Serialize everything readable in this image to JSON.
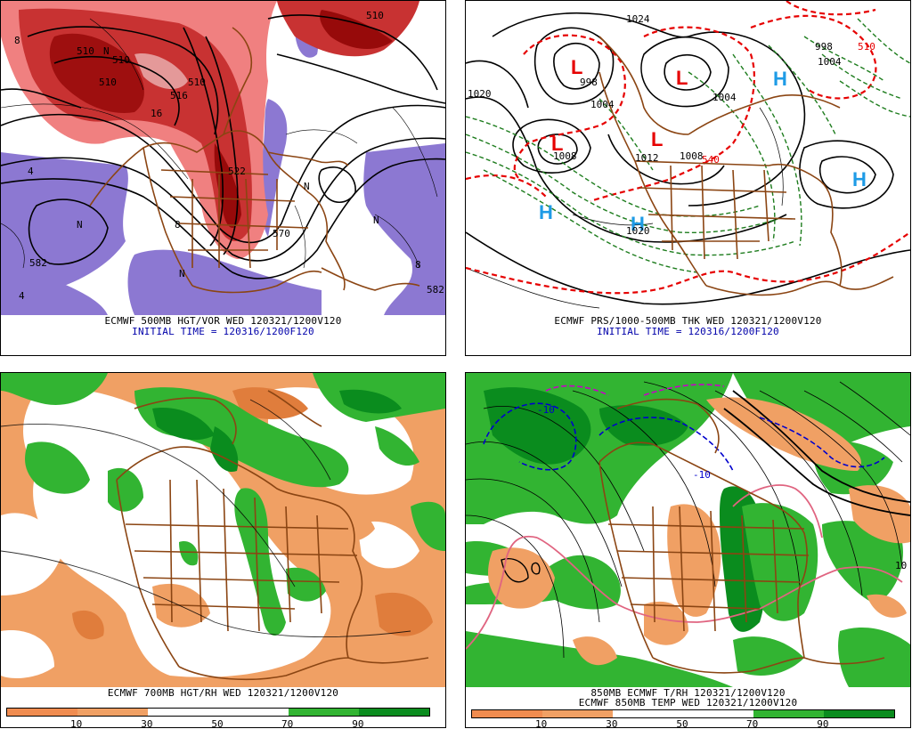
{
  "panels": [
    {
      "id": "p1",
      "caption_lines": [
        "ECMWF 500MB HGT/VOR WED 120321/1200V120",
        "INITIAL TIME = 120316/1200F120"
      ],
      "labels": [
        "510",
        "510",
        "510",
        "516",
        "510",
        "522",
        "510",
        "582",
        "570",
        "582",
        "N",
        "N",
        "N",
        "N",
        "N",
        "4",
        "4",
        "8",
        "8",
        "8",
        "16"
      ]
    },
    {
      "id": "p2",
      "caption_lines": [
        "ECMWF PRS/1000-500MB THK WED 120321/1200V120",
        "INITIAL TIME = 120316/1200F120"
      ],
      "labels": [
        "L",
        "L",
        "L",
        "L",
        "H",
        "H",
        "H",
        "H",
        "998",
        "1004",
        "1012",
        "1004",
        "1008",
        "1008",
        "1020",
        "1024",
        "1020",
        "998",
        "1004",
        "540",
        "510"
      ]
    },
    {
      "id": "p3",
      "caption_lines": [
        "ECMWF 700MB HGT/RH WED 120321/1200V120"
      ],
      "colorbar_ticks": [
        "10",
        "30",
        "50",
        "70",
        "90"
      ]
    },
    {
      "id": "p4",
      "caption_lines": [
        "850MB ECMWF T/RH 120321/1200V120",
        "ECMWF 850MB TEMP WED 120321/1200V120"
      ],
      "labels": [
        "-10",
        "-10",
        "10"
      ],
      "colorbar_ticks": [
        "10",
        "30",
        "50",
        "70",
        "90"
      ]
    }
  ],
  "colors": {
    "vort_dark": "#8b0000",
    "vort_mid": "#c83232",
    "vort_light": "#f08080",
    "neg_vort": "#8c78d2",
    "low_red": "#e60000",
    "high_cyan": "#1e9be6",
    "thickness_red": "#e60000",
    "thickness_green": "#1e7d1e",
    "rh_dry": "#f0a064",
    "rh_very_dry": "#e07d3c",
    "rh_moist": "#32b432",
    "rh_very_moist": "#0a8c1e",
    "border": "#8b4513",
    "contour": "#000000",
    "caption_black": "#000000",
    "caption_blue": "#0000aa",
    "temp_line_blue": "#0000cd",
    "temp_line_magenta": "#c800c8",
    "temp_line_pink": "#e06480"
  }
}
